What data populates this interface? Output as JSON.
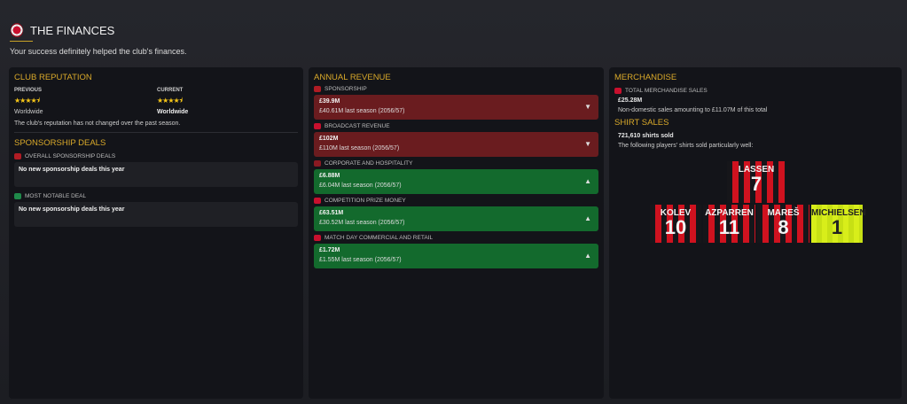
{
  "header": {
    "title": "THE FINANCES",
    "subtitle": "Your success definitely helped the club's finances."
  },
  "reputation": {
    "heading": "CLUB REPUTATION",
    "previous_label": "PREVIOUS",
    "previous_value": "Worldwide",
    "previous_stars": 4.5,
    "current_label": "CURRENT",
    "current_value": "Worldwide",
    "current_stars": 4.5,
    "stars_text": "★★★★⯨",
    "note": "The club's reputation has not changed over the past season."
  },
  "sponsorship": {
    "heading": "SPONSORSHIP DEALS",
    "overall_label": "OVERALL SPONSORSHIP DEALS",
    "overall_value": "No new sponsorship deals this year",
    "notable_label": "MOST NOTABLE DEAL",
    "notable_value": "No new sponsorship deals this year"
  },
  "revenue": {
    "heading": "ANNUAL REVENUE",
    "items": [
      {
        "label": "SPONSORSHIP",
        "value": "£39.9M",
        "previous": "£40.61M last season (2056/57)",
        "trend": "down",
        "arrow": "▼"
      },
      {
        "label": "BROADCAST REVENUE",
        "value": "£102M",
        "previous": "£110M last season (2056/57)",
        "trend": "down",
        "arrow": "▼"
      },
      {
        "label": "CORPORATE AND HOSPITALITY",
        "value": "£6.88M",
        "previous": "£6.04M last season (2056/57)",
        "trend": "up",
        "arrow": "▲"
      },
      {
        "label": "COMPETITION PRIZE MONEY",
        "value": "£63.51M",
        "previous": "£30.52M last season (2056/57)",
        "trend": "up",
        "arrow": "▲"
      },
      {
        "label": "MATCH DAY COMMERCIAL AND RETAIL",
        "value": "£1.72M",
        "previous": "£1.55M last season (2056/57)",
        "trend": "up",
        "arrow": "▲"
      }
    ]
  },
  "merch": {
    "heading": "MERCHANDISE",
    "total_label": "TOTAL MERCHANDISE SALES",
    "total_value": "£25.28M",
    "note": "Non-domestic sales amounting to £11.07M of this total"
  },
  "shirts": {
    "heading": "SHIRT SALES",
    "sold": "721,610 shirts sold",
    "note": "The following players' shirts sold particularly well:",
    "players": [
      {
        "name": "LASSEN",
        "number": "7"
      },
      {
        "name": "KOLEV",
        "number": "10"
      },
      {
        "name": "AZPARREN",
        "number": "11"
      },
      {
        "name": "MAREŠ",
        "number": "8"
      },
      {
        "name": "MICHIELSEN",
        "number": "1"
      }
    ]
  }
}
